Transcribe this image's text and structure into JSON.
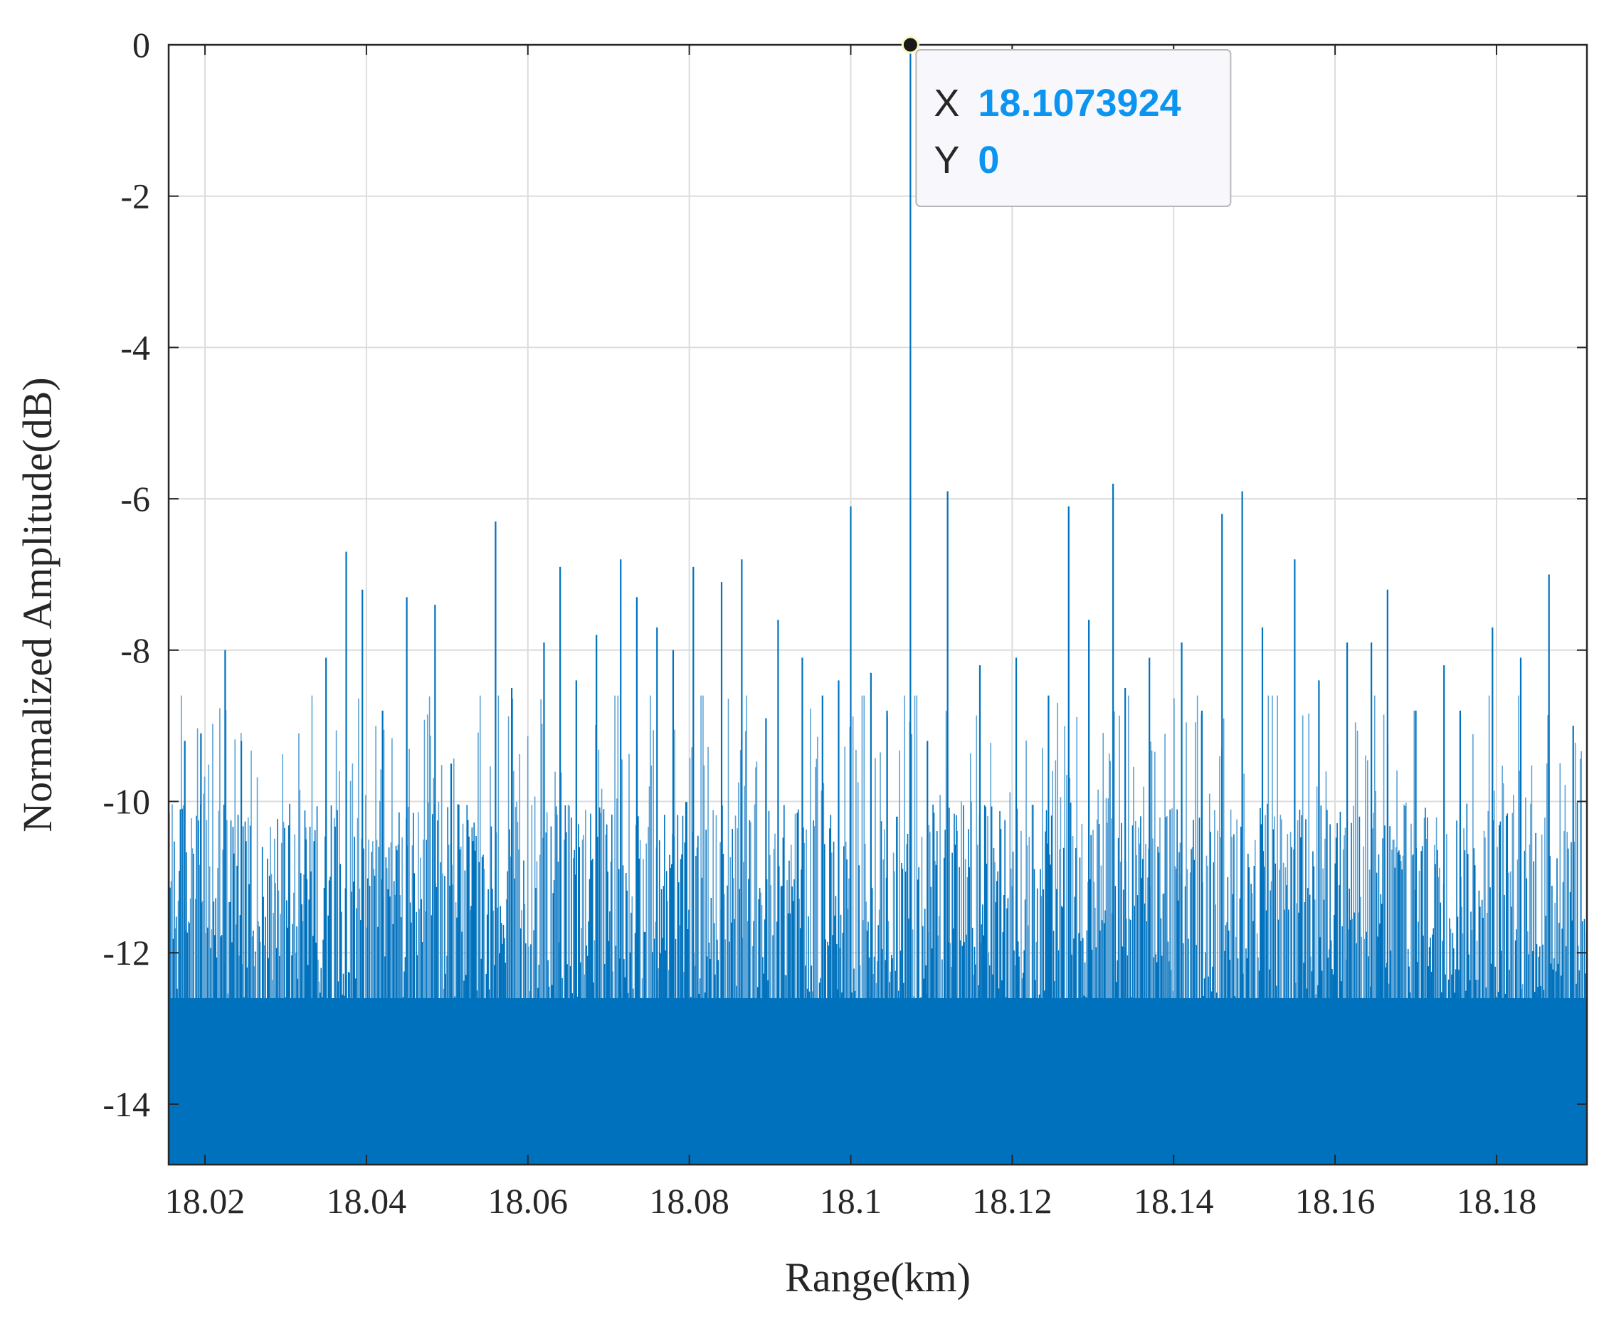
{
  "chart_data": {
    "type": "bar",
    "xlabel": "Range(km)",
    "ylabel": "Normalized Amplitude(dB)",
    "xlim": [
      18.0155,
      18.1912
    ],
    "ylim": [
      -14.8,
      0
    ],
    "xticks": [
      18.02,
      18.04,
      18.06,
      18.08,
      18.1,
      18.12,
      18.14,
      18.16,
      18.18
    ],
    "xtick_labels": [
      "18.02",
      "18.04",
      "18.06",
      "18.08",
      "18.1",
      "18.12",
      "18.14",
      "18.16",
      "18.18"
    ],
    "yticks": [
      0,
      -2,
      -4,
      -6,
      -8,
      -10,
      -12,
      -14
    ],
    "ytick_labels": [
      "0",
      "-2",
      "-4",
      "-6",
      "-8",
      "-10",
      "-12",
      "-14"
    ],
    "grid": true,
    "bar_color": "#0072bd",
    "series": [
      {
        "values_description": "dense noise floor, amplitudes mostly between -14.8 and -8 dB",
        "x": [
          18.0175,
          18.0195,
          18.0225,
          18.0245,
          18.0325,
          18.035,
          18.0375,
          18.0395,
          18.042,
          18.045,
          18.0485,
          18.0505,
          18.056,
          18.058,
          18.062,
          18.064,
          18.066,
          18.0685,
          18.0715,
          18.0735,
          18.076,
          18.078,
          18.0805,
          18.084,
          18.0865,
          18.0895,
          18.091,
          18.094,
          18.0965,
          18.0985,
          18.1,
          18.1025,
          18.1045,
          18.1073924,
          18.1095,
          18.112,
          18.116,
          18.1205,
          18.1245,
          18.127,
          18.1295,
          18.1325,
          18.134,
          18.137,
          18.141,
          18.1435,
          18.146,
          18.1485,
          18.151,
          18.155,
          18.158,
          18.1615,
          18.1645,
          18.1665,
          18.17,
          18.1735,
          18.1755,
          18.1795,
          18.183,
          18.1865,
          18.1895
        ],
        "y": [
          -9.2,
          -9.1,
          -8,
          -9.2,
          -10.5,
          -8.1,
          -6.7,
          -7.2,
          -8.8,
          -7.3,
          -7.4,
          -9.5,
          -6.3,
          -8.5,
          -7.9,
          -6.9,
          -8.4,
          -7.8,
          -6.8,
          -7.3,
          -7.7,
          -8,
          -6.9,
          -7.1,
          -6.8,
          -8.9,
          -7.6,
          -8.1,
          -8.6,
          -8.4,
          -6.1,
          -8.3,
          -8.8,
          0,
          -9.2,
          -5.9,
          -8.2,
          -8.1,
          -8.6,
          -6.1,
          -7.6,
          -5.8,
          -8.5,
          -8.1,
          -7.9,
          -8.8,
          -6.2,
          -5.9,
          -7.7,
          -6.8,
          -8.4,
          -7.9,
          -7.9,
          -7.2,
          -8.8,
          -8.2,
          -8.8,
          -7.7,
          -8.1,
          -7,
          -9
        ]
      }
    ],
    "datatip": {
      "x_label": "X",
      "x_value": "18.1073924",
      "y_label": "Y",
      "y_value": "0",
      "x": 18.1073924,
      "y": 0
    }
  }
}
